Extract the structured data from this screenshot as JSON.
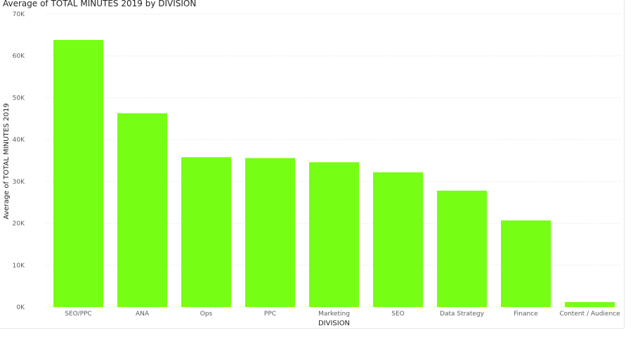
{
  "chart_data": {
    "type": "bar",
    "title": "Average of TOTAL MINUTES 2019 by DIVISION",
    "xlabel": "DIVISION",
    "ylabel": "Average of TOTAL MINUTES 2019",
    "categories": [
      "SEO/PPC",
      "ANA",
      "Ops",
      "PPC",
      "Marketing",
      "SEO",
      "Data Strategy",
      "Finance",
      "Content / Audience"
    ],
    "values": [
      63800,
      46300,
      35800,
      35600,
      34600,
      32200,
      27800,
      20700,
      1200
    ],
    "ylim": [
      0,
      70000
    ],
    "yticks": [
      "0K",
      "10K",
      "20K",
      "30K",
      "40K",
      "50K",
      "60K",
      "70K"
    ],
    "grid": true,
    "bar_color": "#76ff14",
    "grid_color": "#d9d9d9"
  }
}
